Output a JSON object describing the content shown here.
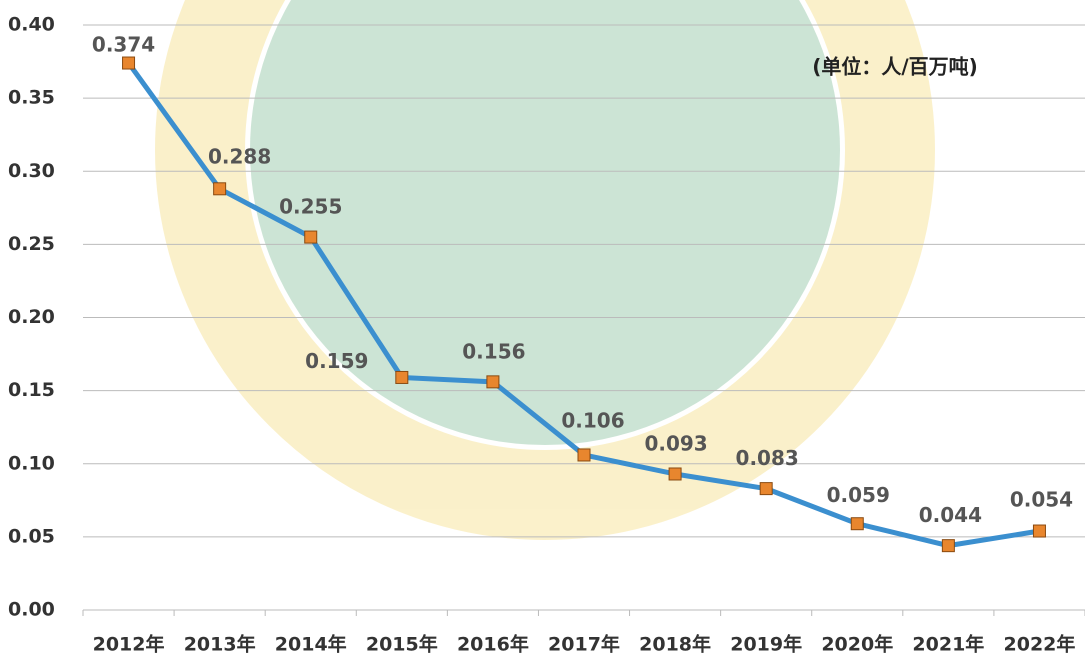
{
  "chart_data": {
    "type": "line",
    "annotation": "(单位：人/百万吨)",
    "categories": [
      "2012年",
      "2013年",
      "2014年",
      "2015年",
      "2016年",
      "2017年",
      "2018年",
      "2019年",
      "2020年",
      "2021年",
      "2022年"
    ],
    "series": [
      {
        "color": "#3b8fcf",
        "marker_color": "#e8862e",
        "values": [
          0.374,
          0.288,
          0.255,
          0.159,
          0.156,
          0.106,
          0.093,
          0.083,
          0.059,
          0.044,
          0.054
        ]
      }
    ],
    "ylim": [
      0,
      0.4
    ],
    "yticks": [
      {
        "value": 0,
        "label": "0.00"
      },
      0.05,
      {
        "value": 0.1,
        "label": "0.10"
      },
      0.15,
      {
        "value": 0.2,
        "label": "0.20"
      },
      0.25,
      {
        "value": 0.3,
        "label": "0.30"
      },
      0.35,
      {
        "value": 0.4,
        "label": "0.40"
      }
    ],
    "grid": true
  }
}
